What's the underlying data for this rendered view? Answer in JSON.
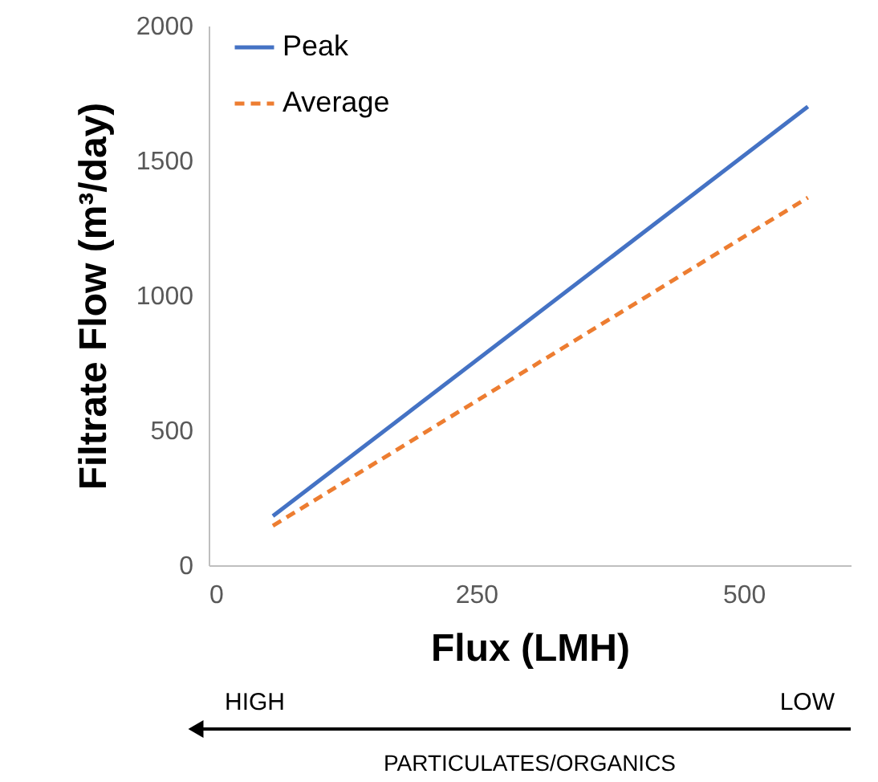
{
  "chart_data": {
    "type": "line",
    "xlabel": "Flux (LMH)",
    "ylabel": "Filtrate Flow (m³/day)",
    "xlim": [
      0,
      600
    ],
    "xticks": [
      0,
      250,
      500
    ],
    "ylim": [
      0,
      2000
    ],
    "yticks": [
      0,
      500,
      1000,
      1500,
      2000
    ],
    "grid": false,
    "legend": "top left",
    "x": [
      60,
      560
    ],
    "series": [
      {
        "name": "Peak",
        "color": "#4472c4",
        "line_style": "solid",
        "values": [
          182,
          1700
        ]
      },
      {
        "name": "Average",
        "color": "#ed7d31",
        "line_style": "dashed",
        "values": [
          146,
          1363
        ]
      }
    ],
    "annotations": [
      "HIGH",
      "LOW",
      "PARTICULATES/ORGANICS"
    ]
  }
}
